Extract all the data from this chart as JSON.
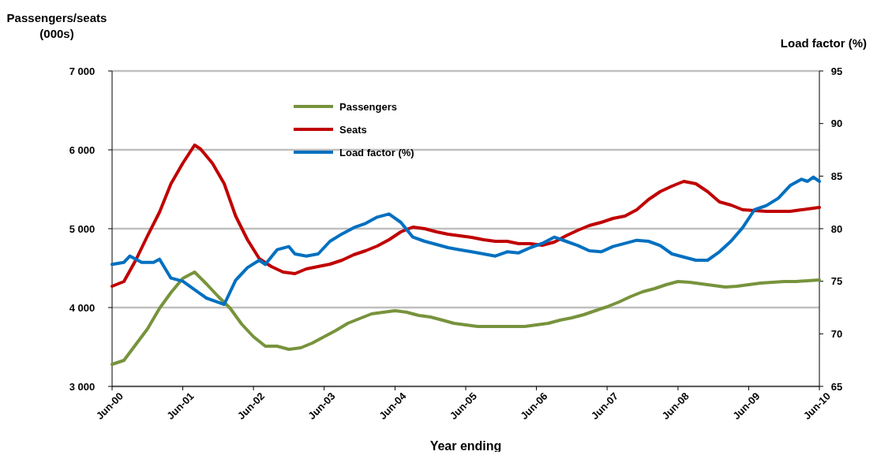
{
  "chart_data": {
    "type": "line",
    "xlabel": "Year ending",
    "ylabel": "Passengers/seats (000s)",
    "y2label": "Load factor (%)",
    "xlim": [
      "2000-06",
      "2010-06"
    ],
    "xticks": [
      {
        "value": "2000-06",
        "label": "Jun-00"
      },
      {
        "value": "2001-06",
        "label": "Jun-01"
      },
      {
        "value": "2002-06",
        "label": "Jun-02"
      },
      {
        "value": "2003-06",
        "label": "Jun-03"
      },
      {
        "value": "2004-06",
        "label": "Jun-04"
      },
      {
        "value": "2005-06",
        "label": "Jun-05"
      },
      {
        "value": "2006-06",
        "label": "Jun-06"
      },
      {
        "value": "2007-06",
        "label": "Jun-07"
      },
      {
        "value": "2008-06",
        "label": "Jun-08"
      },
      {
        "value": "2009-06",
        "label": "Jun-09"
      },
      {
        "value": "2010-06",
        "label": "Jun-10"
      }
    ],
    "ylim": [
      3000,
      7000
    ],
    "yticks": [
      {
        "value": 3000,
        "label": "3 000"
      },
      {
        "value": 4000,
        "label": "4 000"
      },
      {
        "value": 5000,
        "label": "5 000"
      },
      {
        "value": 6000,
        "label": "6 000"
      },
      {
        "value": 7000,
        "label": "7 000"
      }
    ],
    "y2lim": [
      65,
      95
    ],
    "y2ticks": [
      65,
      70,
      75,
      80,
      85,
      90,
      95
    ],
    "grid": "y",
    "legend": "top left",
    "marker": "none",
    "line_style": "solid",
    "series": [
      {
        "name": "Passengers",
        "color": "#77933c",
        "x": [
          "2000-06",
          "2000-08",
          "2000-10",
          "2000-12",
          "2001-02",
          "2001-04",
          "2001-06",
          "2001-08",
          "2001-10",
          "2001-12",
          "2002-02",
          "2002-04",
          "2002-06",
          "2002-08",
          "2002-10",
          "2002-12",
          "2003-02",
          "2003-04",
          "2003-06",
          "2003-08",
          "2003-10",
          "2003-12",
          "2004-02",
          "2004-04",
          "2004-06",
          "2004-08",
          "2004-10",
          "2004-12",
          "2005-02",
          "2005-04",
          "2005-06",
          "2005-08",
          "2005-12",
          "2006-04",
          "2006-06",
          "2006-08",
          "2006-10",
          "2006-12",
          "2007-02",
          "2007-04",
          "2007-06",
          "2007-08",
          "2007-10",
          "2007-12",
          "2008-02",
          "2008-04",
          "2008-06",
          "2008-08",
          "2008-10",
          "2008-12",
          "2009-02",
          "2009-04",
          "2009-06",
          "2009-08",
          "2009-10",
          "2009-12",
          "2010-02",
          "2010-06"
        ],
        "values": [
          3280,
          3330,
          3530,
          3730,
          3990,
          4190,
          4370,
          4450,
          4300,
          4140,
          3990,
          3790,
          3630,
          3510,
          3510,
          3470,
          3490,
          3550,
          3630,
          3710,
          3800,
          3860,
          3920,
          3940,
          3960,
          3940,
          3900,
          3880,
          3840,
          3800,
          3780,
          3760,
          3760,
          3760,
          3780,
          3800,
          3840,
          3870,
          3910,
          3960,
          4010,
          4070,
          4140,
          4200,
          4240,
          4290,
          4330,
          4320,
          4300,
          4280,
          4260,
          4270,
          4290,
          4310,
          4320,
          4330,
          4330,
          4350
        ]
      },
      {
        "name": "Seats",
        "color": "#c00000",
        "x": [
          "2000-06",
          "2000-08",
          "2000-10",
          "2000-12",
          "2001-02",
          "2001-04",
          "2001-06",
          "2001-08",
          "2001-09",
          "2001-11",
          "2002-01",
          "2002-03",
          "2002-05",
          "2002-07",
          "2002-09",
          "2002-11",
          "2003-01",
          "2003-03",
          "2003-05",
          "2003-07",
          "2003-09",
          "2003-11",
          "2004-01",
          "2004-03",
          "2004-05",
          "2004-07",
          "2004-09",
          "2004-11",
          "2005-01",
          "2005-03",
          "2005-05",
          "2005-07",
          "2005-09",
          "2005-11",
          "2006-01",
          "2006-03",
          "2006-05",
          "2006-07",
          "2006-09",
          "2006-11",
          "2007-01",
          "2007-03",
          "2007-05",
          "2007-07",
          "2007-09",
          "2007-11",
          "2008-01",
          "2008-03",
          "2008-05",
          "2008-07",
          "2008-09",
          "2008-11",
          "2009-01",
          "2009-03",
          "2009-05",
          "2009-07",
          "2009-09",
          "2009-11",
          "2010-01",
          "2010-03",
          "2010-06"
        ],
        "values": [
          4270,
          4330,
          4600,
          4910,
          5210,
          5570,
          5830,
          6060,
          6010,
          5830,
          5570,
          5160,
          4860,
          4620,
          4520,
          4450,
          4430,
          4490,
          4520,
          4550,
          4600,
          4670,
          4720,
          4780,
          4860,
          4960,
          5020,
          5000,
          4960,
          4930,
          4910,
          4890,
          4860,
          4840,
          4840,
          4810,
          4810,
          4790,
          4830,
          4910,
          4980,
          5040,
          5080,
          5130,
          5160,
          5240,
          5370,
          5470,
          5540,
          5600,
          5570,
          5470,
          5340,
          5300,
          5240,
          5230,
          5220,
          5220,
          5220,
          5240,
          5270
        ]
      },
      {
        "name": "Load factor (%)",
        "color": "#0070c0",
        "axis": "y2",
        "x": [
          "2000-06",
          "2000-08",
          "2000-09",
          "2000-11",
          "2001-01",
          "2001-02",
          "2001-04",
          "2001-06",
          "2001-08",
          "2001-10",
          "2001-12",
          "2002-01",
          "2002-03",
          "2002-05",
          "2002-07",
          "2002-08",
          "2002-10",
          "2002-12",
          "2003-01",
          "2003-03",
          "2003-05",
          "2003-07",
          "2003-09",
          "2003-11",
          "2004-01",
          "2004-03",
          "2004-05",
          "2004-07",
          "2004-09",
          "2004-11",
          "2005-01",
          "2005-03",
          "2005-05",
          "2005-07",
          "2005-09",
          "2005-11",
          "2006-01",
          "2006-03",
          "2006-05",
          "2006-07",
          "2006-09",
          "2006-11",
          "2007-01",
          "2007-03",
          "2007-05",
          "2007-07",
          "2007-09",
          "2007-11",
          "2008-01",
          "2008-03",
          "2008-05",
          "2008-07",
          "2008-09",
          "2008-11",
          "2009-01",
          "2009-03",
          "2009-05",
          "2009-07",
          "2009-09",
          "2009-11",
          "2010-01",
          "2010-03",
          "2010-04",
          "2010-05",
          "2010-06"
        ],
        "values": [
          76.6,
          76.8,
          77.4,
          76.8,
          76.8,
          77.1,
          75.3,
          75.0,
          74.2,
          73.4,
          73.0,
          72.8,
          75.1,
          76.3,
          77.0,
          76.6,
          78.0,
          78.3,
          77.6,
          77.4,
          77.6,
          78.8,
          79.5,
          80.1,
          80.5,
          81.1,
          81.4,
          80.6,
          79.2,
          78.8,
          78.5,
          78.2,
          78.0,
          77.8,
          77.6,
          77.4,
          77.8,
          77.7,
          78.2,
          78.6,
          79.2,
          78.8,
          78.4,
          77.9,
          77.8,
          78.3,
          78.6,
          78.9,
          78.8,
          78.4,
          77.6,
          77.3,
          77.0,
          77.0,
          77.8,
          78.8,
          80.1,
          81.8,
          82.2,
          82.9,
          84.1,
          84.7,
          84.5,
          84.9,
          84.5
        ]
      }
    ]
  }
}
